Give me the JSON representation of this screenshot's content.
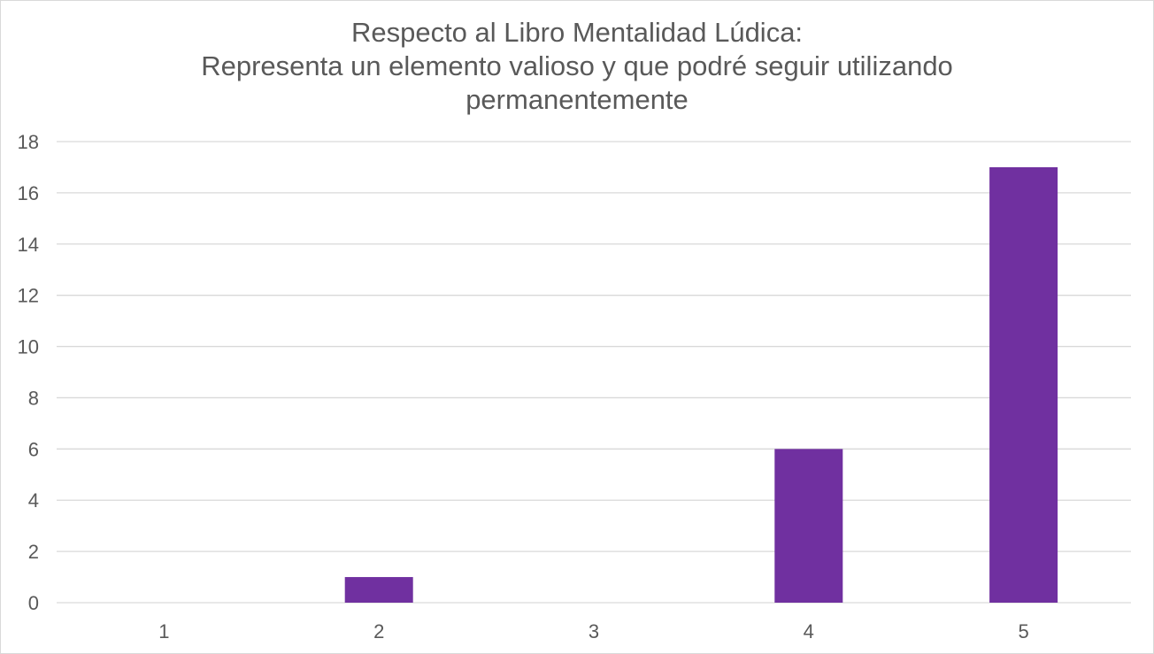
{
  "chart_data": {
    "type": "bar",
    "title_lines": [
      "Respecto al Libro Mentalidad Lúdica:",
      "Representa un elemento valioso y que podré seguir utilizando",
      "permanentemente"
    ],
    "categories": [
      "1",
      "2",
      "3",
      "4",
      "5"
    ],
    "values": [
      0,
      1,
      0,
      6,
      17
    ],
    "ylim": [
      0,
      18
    ],
    "yticks": [
      "0",
      "2",
      "4",
      "6",
      "8",
      "10",
      "12",
      "14",
      "16",
      "18"
    ],
    "grid": true,
    "legend": "none",
    "bar_color": "#7030a0",
    "grid_color": "#d9d9d9",
    "text_color": "#595959"
  }
}
